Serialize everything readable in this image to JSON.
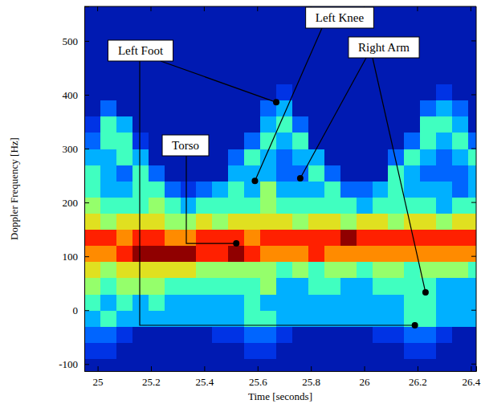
{
  "chart_data": {
    "type": "heatmap",
    "x_label": "Time [seconds]",
    "y_label": "Doppler Frequency [Hz]",
    "xlim": [
      24.95,
      26.42
    ],
    "ylim": [
      -113,
      564
    ],
    "xticks": [
      25,
      25.2,
      25.4,
      25.6,
      25.8,
      26,
      26.2,
      26.4
    ],
    "yticks": [
      -100,
      0,
      100,
      200,
      300,
      400,
      500
    ],
    "x_edges": [
      24.95,
      25.01,
      25.07,
      25.13,
      25.19,
      25.25,
      25.31,
      25.37,
      25.43,
      25.49,
      25.55,
      25.61,
      25.67,
      25.73,
      25.79,
      25.85,
      25.91,
      25.97,
      26.03,
      26.09,
      26.15,
      26.21,
      26.27,
      26.33,
      26.39,
      26.45
    ],
    "y_edges": [
      -120,
      -90,
      -60,
      -30,
      0,
      30,
      60,
      90,
      120,
      150,
      180,
      210,
      240,
      270,
      300,
      330,
      360,
      390,
      420,
      450,
      480,
      510,
      540,
      570
    ],
    "zlim": [
      0,
      10
    ],
    "cells": [
      [
        1,
        1,
        1,
        1,
        1,
        1,
        1,
        1,
        1,
        1,
        1,
        1,
        1,
        1,
        1,
        1,
        1,
        1,
        1,
        1,
        1,
        1,
        1,
        1,
        1
      ],
      [
        2,
        2,
        1,
        1,
        1,
        1,
        1,
        1,
        1,
        1,
        2,
        2,
        1,
        1,
        1,
        1,
        1,
        1,
        1,
        1,
        2,
        2,
        1,
        1,
        1
      ],
      [
        3,
        3,
        2,
        1,
        1,
        1,
        1,
        1,
        2,
        2,
        3,
        3,
        2,
        1,
        1,
        1,
        1,
        1,
        2,
        2,
        3,
        3,
        2,
        1,
        1
      ],
      [
        4,
        5,
        4,
        4,
        4,
        4,
        4,
        4,
        4,
        4,
        5,
        5,
        4,
        4,
        4,
        4,
        4,
        4,
        4,
        4,
        5,
        5,
        4,
        4,
        4
      ],
      [
        5,
        4,
        5,
        4,
        5,
        4,
        4,
        4,
        4,
        4,
        5,
        4,
        4,
        4,
        4,
        4,
        4,
        4,
        4,
        4,
        5,
        5,
        4,
        4,
        4
      ],
      [
        6,
        5,
        6,
        6,
        6,
        5,
        5,
        5,
        5,
        5,
        5,
        6,
        4,
        4,
        5,
        5,
        4,
        4,
        5,
        5,
        5,
        5,
        4,
        4,
        4
      ],
      [
        7,
        6,
        7,
        7,
        7,
        7,
        7,
        6,
        6,
        6,
        6,
        6,
        5,
        6,
        5,
        6,
        6,
        5,
        6,
        6,
        5,
        6,
        6,
        6,
        5
      ],
      [
        8,
        8,
        9,
        10,
        10,
        10,
        10,
        9,
        9,
        10,
        9,
        8,
        8,
        8,
        9,
        8,
        8,
        8,
        8,
        8,
        8,
        8,
        8,
        8,
        8
      ],
      [
        9,
        9,
        8,
        9,
        9,
        8,
        8,
        9,
        9,
        9,
        8,
        9,
        9,
        9,
        9,
        9,
        10,
        9,
        9,
        9,
        9,
        9,
        9,
        9,
        9
      ],
      [
        7,
        6,
        7,
        7,
        7,
        6,
        6,
        7,
        6,
        7,
        7,
        7,
        7,
        6,
        7,
        7,
        6,
        7,
        7,
        6,
        7,
        7,
        6,
        7,
        7
      ],
      [
        6,
        5,
        5,
        5,
        6,
        5,
        4,
        5,
        5,
        5,
        5,
        6,
        5,
        5,
        5,
        5,
        5,
        4,
        5,
        5,
        5,
        5,
        4,
        5,
        5
      ],
      [
        5,
        4,
        4,
        5,
        5,
        3,
        2,
        3,
        4,
        5,
        4,
        6,
        4,
        4,
        4,
        5,
        3,
        3,
        4,
        5,
        4,
        4,
        4,
        3,
        4
      ],
      [
        5,
        4,
        3,
        5,
        3,
        1,
        1,
        1,
        1,
        4,
        4,
        4,
        3,
        3,
        5,
        3,
        1,
        1,
        1,
        5,
        4,
        3,
        3,
        3,
        4
      ],
      [
        4,
        4,
        5,
        4,
        1,
        1,
        1,
        1,
        1,
        3,
        5,
        4,
        3,
        4,
        4,
        1,
        1,
        1,
        1,
        3,
        5,
        4,
        3,
        4,
        5
      ],
      [
        3,
        5,
        5,
        2,
        1,
        1,
        1,
        1,
        1,
        1,
        3,
        5,
        4,
        5,
        1,
        1,
        1,
        1,
        1,
        1,
        3,
        5,
        4,
        5,
        3
      ],
      [
        2,
        5,
        4,
        1,
        1,
        1,
        1,
        1,
        1,
        1,
        1,
        4,
        5,
        3,
        1,
        1,
        1,
        1,
        1,
        1,
        1,
        5,
        5,
        4,
        1
      ],
      [
        1,
        3,
        1,
        1,
        1,
        1,
        1,
        1,
        1,
        1,
        1,
        3,
        4,
        1,
        1,
        1,
        1,
        1,
        1,
        1,
        1,
        3,
        4,
        3,
        1
      ],
      [
        1,
        1,
        1,
        1,
        1,
        1,
        1,
        1,
        1,
        1,
        1,
        1,
        2,
        1,
        1,
        1,
        1,
        1,
        1,
        1,
        1,
        1,
        2,
        1,
        1
      ],
      [
        1,
        1,
        1,
        1,
        1,
        1,
        1,
        1,
        1,
        1,
        1,
        1,
        1,
        1,
        1,
        1,
        1,
        1,
        1,
        1,
        1,
        1,
        1,
        1,
        1
      ],
      [
        1,
        1,
        1,
        1,
        1,
        1,
        1,
        1,
        1,
        1,
        1,
        1,
        1,
        1,
        1,
        1,
        1,
        1,
        1,
        1,
        1,
        1,
        1,
        1,
        1
      ],
      [
        1,
        1,
        1,
        1,
        1,
        1,
        1,
        1,
        1,
        1,
        1,
        1,
        1,
        1,
        1,
        1,
        1,
        1,
        1,
        1,
        1,
        1,
        1,
        1,
        1
      ],
      [
        1,
        1,
        1,
        1,
        1,
        1,
        1,
        1,
        1,
        1,
        1,
        1,
        1,
        1,
        1,
        1,
        1,
        1,
        1,
        1,
        1,
        1,
        1,
        1,
        1
      ],
      [
        1,
        1,
        1,
        1,
        1,
        1,
        1,
        1,
        1,
        1,
        1,
        1,
        1,
        1,
        1,
        1,
        1,
        1,
        1,
        1,
        1,
        1,
        1,
        1,
        1
      ]
    ],
    "annotations": [
      {
        "text": "Left Foot",
        "points": [
          [
            25.67,
            386
          ],
          [
            26.19,
            -28
          ]
        ]
      },
      {
        "text": "Left Knee",
        "points": [
          [
            25.59,
            240
          ]
        ]
      },
      {
        "text": "Right Arm",
        "points": [
          [
            25.76,
            245
          ],
          [
            26.23,
            33
          ]
        ]
      },
      {
        "text": "Torso",
        "points": [
          [
            25.52,
            124
          ]
        ]
      }
    ]
  }
}
